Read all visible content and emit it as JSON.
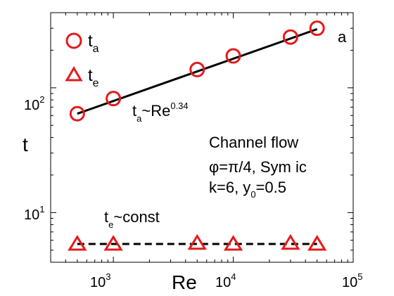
{
  "chart_data": {
    "type": "scatter",
    "x_scale": "log",
    "y_scale": "log",
    "xlim": [
      300,
      100000
    ],
    "ylim": [
      4,
      400
    ],
    "xlabel": "Re",
    "ylabel": "t",
    "grid": false,
    "x_ticks": [
      {
        "value": 1000,
        "base": "10",
        "exp": "3"
      },
      {
        "value": 10000,
        "base": "10",
        "exp": "4"
      },
      {
        "value": 100000,
        "base": "10",
        "exp": "5"
      }
    ],
    "y_ticks": [
      {
        "value": 10,
        "base": "10",
        "exp": "1"
      },
      {
        "value": 100,
        "base": "10",
        "exp": "2"
      }
    ],
    "series": [
      {
        "name_base": "t",
        "name_sub": "a",
        "marker": "circle",
        "color": "#e41a1c",
        "x": [
          500,
          1000,
          5000,
          10000,
          30000,
          50000
        ],
        "y": [
          62,
          82,
          140,
          180,
          255,
          300
        ]
      },
      {
        "name_base": "t",
        "name_sub": "e",
        "marker": "triangle",
        "color": "#e41a1c",
        "x": [
          500,
          1000,
          5000,
          10000,
          30000,
          50000
        ],
        "y": [
          5.6,
          5.6,
          5.7,
          5.6,
          5.7,
          5.6
        ]
      }
    ],
    "fits": [
      {
        "style": "solid",
        "color": "#000000",
        "x": [
          500,
          50000
        ],
        "y": [
          62,
          295
        ]
      },
      {
        "style": "dashed",
        "color": "#000000",
        "x": [
          500,
          50000
        ],
        "y": [
          5.6,
          5.6
        ]
      }
    ],
    "legend_position": "top-left",
    "annotations": {
      "panel_label": "a",
      "fit_a": {
        "base": "t",
        "sub": "a",
        "text": "~Re",
        "sup": "0.34"
      },
      "fit_e": {
        "base": "t",
        "sub": "e",
        "text": "~const"
      },
      "case_line1": "Channel flow",
      "case_line2": "φ=π/4, Sym ic",
      "case_line3_a": "k=6, y",
      "case_line3_sub": "0",
      "case_line3_b": "=0.5"
    }
  }
}
